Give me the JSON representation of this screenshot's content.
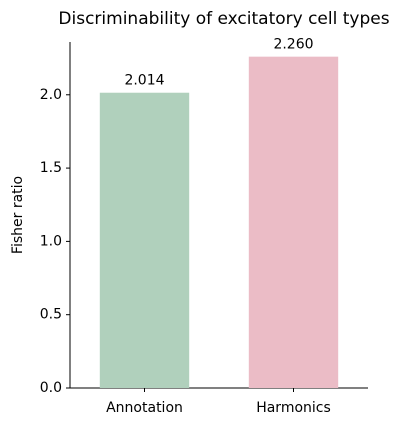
{
  "chart_data": {
    "type": "bar",
    "title": "Discriminability of excitatory cell types",
    "y_label": "Fisher ratio",
    "categories": [
      "Annotation",
      "Harmonics"
    ],
    "values": [
      2.014,
      2.26
    ],
    "value_labels": [
      "2.014",
      "2.260"
    ],
    "colors": [
      "#b0d0bc",
      "#ebbcc6"
    ],
    "ylim": [
      0,
      2.36
    ],
    "yticks": [
      {
        "value": 0,
        "label": "0.0"
      },
      {
        "value": 0.5,
        "label": "0.5"
      },
      {
        "value": 1,
        "label": "1.0"
      },
      {
        "value": 1.5,
        "label": "1.5"
      },
      {
        "value": 2,
        "label": "2.0"
      }
    ],
    "grid": false
  }
}
